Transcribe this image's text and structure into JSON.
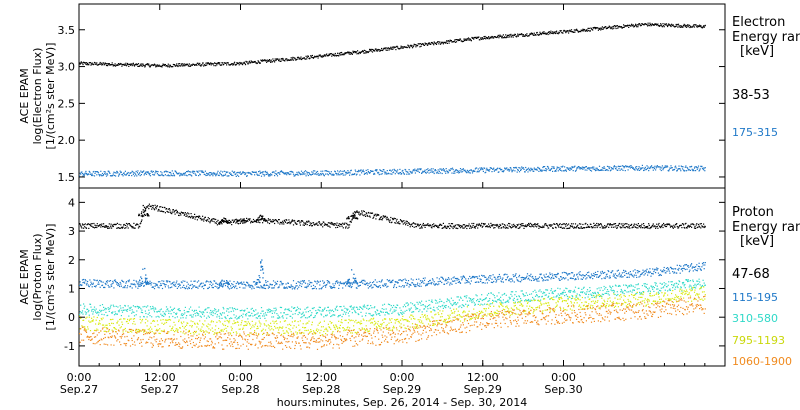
{
  "chart_data": [
    {
      "type": "scatter",
      "name": "electron",
      "ylabel": [
        "ACE EPAM",
        "log(Electron Flux)",
        "[1/(cm²s ster MeV)]"
      ],
      "ylim": [
        1.35,
        3.85
      ],
      "yticks": [
        1.5,
        2.0,
        2.5,
        3.0,
        3.5
      ],
      "ytick_labels": [
        "1.5",
        "2.0",
        "2.5",
        "3.0",
        "3.5"
      ],
      "legend": {
        "title": [
          "Electron",
          "Energy ran",
          "[keV]"
        ],
        "placement": "right"
      },
      "series": [
        {
          "name": "38-53",
          "color": "#000000",
          "x": [
            0,
            12,
            24,
            36,
            48,
            60,
            72,
            84,
            93
          ],
          "y": [
            3.05,
            3.02,
            3.05,
            3.15,
            3.27,
            3.4,
            3.48,
            3.58,
            3.55
          ]
        },
        {
          "name": "175-315",
          "color": "#1f78c8",
          "x": [
            0,
            12,
            24,
            36,
            48,
            60,
            72,
            84,
            93
          ],
          "y": [
            1.55,
            1.56,
            1.55,
            1.56,
            1.58,
            1.6,
            1.62,
            1.63,
            1.62
          ]
        }
      ]
    },
    {
      "type": "scatter",
      "name": "proton",
      "ylabel": [
        "ACE EPAM",
        "log(Proton Flux)",
        "[1/(cm²s ster MeV)]"
      ],
      "ylim": [
        -1.7,
        4.5
      ],
      "yticks": [
        -1,
        0,
        1,
        2,
        3,
        4
      ],
      "ytick_labels": [
        "-1",
        "0",
        "1",
        "2",
        "3",
        "4"
      ],
      "legend": {
        "title": [
          "Proton",
          "Energy ran",
          "[keV]"
        ],
        "placement": "right"
      },
      "series": [
        {
          "name": "47-68",
          "color": "#000000",
          "x": [
            0,
            9,
            10,
            21,
            26,
            40,
            41,
            50,
            60,
            70,
            80,
            93
          ],
          "y": [
            3.2,
            3.2,
            3.9,
            3.3,
            3.4,
            3.2,
            3.7,
            3.2,
            3.2,
            3.2,
            3.2,
            3.2
          ],
          "spikes": [
            [
              9.5,
              3.95
            ],
            [
              21.5,
              3.5
            ],
            [
              24,
              3.45
            ],
            [
              27,
              3.6
            ],
            [
              40.5,
              3.85
            ]
          ]
        },
        {
          "name": "115-195",
          "color": "#1f78c8",
          "x": [
            0,
            12,
            24,
            36,
            48,
            60,
            72,
            84,
            93
          ],
          "y": [
            1.2,
            1.15,
            1.15,
            1.15,
            1.2,
            1.35,
            1.45,
            1.55,
            1.8
          ],
          "spikes": [
            [
              9.5,
              1.95
            ],
            [
              21.5,
              1.5
            ],
            [
              27,
              2.1
            ],
            [
              40.5,
              1.75
            ]
          ]
        },
        {
          "name": "310-580",
          "color": "#2fd9c8",
          "x": [
            0,
            12,
            24,
            36,
            48,
            60,
            72,
            84,
            93
          ],
          "y": [
            0.3,
            0.2,
            0.15,
            0.2,
            0.3,
            0.65,
            0.85,
            1.0,
            1.2
          ]
        },
        {
          "name": "795-1193",
          "color": "#d8ea10",
          "x": [
            0,
            12,
            24,
            36,
            48,
            60,
            72,
            84,
            93
          ],
          "y": [
            -0.2,
            -0.3,
            -0.35,
            -0.35,
            -0.2,
            0.25,
            0.5,
            0.65,
            0.85
          ]
        },
        {
          "name": "1060-1900",
          "color": "#f08a1e",
          "x": [
            0,
            12,
            24,
            36,
            48,
            60,
            72,
            84,
            93
          ],
          "y": [
            -0.6,
            -0.75,
            -0.8,
            -0.8,
            -0.6,
            -0.1,
            0.1,
            0.25,
            0.45
          ]
        }
      ]
    }
  ],
  "xaxis": {
    "xlim": [
      0,
      96
    ],
    "xlabel": "hours:minutes, Sep. 26, 2014 - Sep. 30, 2014",
    "ticks": [
      {
        "x": 0,
        "time": "0:00",
        "date": "Sep.27"
      },
      {
        "x": 12,
        "time": "12:00",
        "date": "Sep.27"
      },
      {
        "x": 24,
        "time": "0:00",
        "date": "Sep.28"
      },
      {
        "x": 36,
        "time": "12:00",
        "date": "Sep.28"
      },
      {
        "x": 48,
        "time": "0:00",
        "date": "Sep.29"
      },
      {
        "x": 60,
        "time": "12:00",
        "date": "Sep.29"
      },
      {
        "x": 72,
        "time": "0:00",
        "date": "Sep.30"
      }
    ],
    "data_end": 93
  }
}
